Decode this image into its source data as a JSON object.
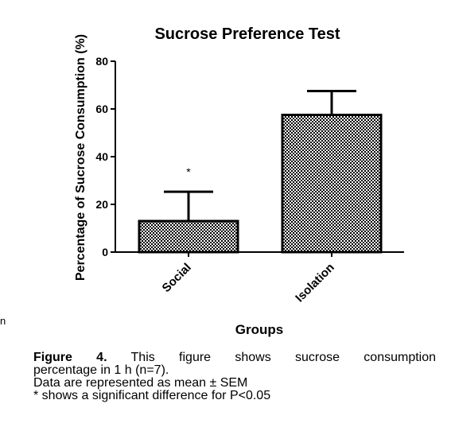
{
  "chart_data": {
    "type": "bar",
    "title": "Sucrose Preference Test",
    "xlabel": "Groups",
    "ylabel": "Percentage of Sucrose Consumption (%)",
    "categories": [
      "Social",
      "Isolation"
    ],
    "values": [
      13,
      57.5
    ],
    "error": [
      12.3,
      10
    ],
    "ylim": [
      0,
      80
    ],
    "yticks": [
      "0",
      "20",
      "40",
      "60",
      "80"
    ],
    "annotations": [
      {
        "category": "Social",
        "text": "*"
      }
    ],
    "bar_pattern": "checkered",
    "bar_colors": {
      "fill": "#ffffff",
      "pattern": "#000000",
      "border": "#000000"
    }
  },
  "caption": {
    "figure_label": "Figure 4.",
    "line1_rest": "This figure shows sucrose consumption",
    "line2": "percentage in 1 h (n=7).",
    "line3": "Data are represented as mean ± SEM",
    "line4": "* shows a significant difference for P<0.05"
  },
  "stray_text": "n"
}
